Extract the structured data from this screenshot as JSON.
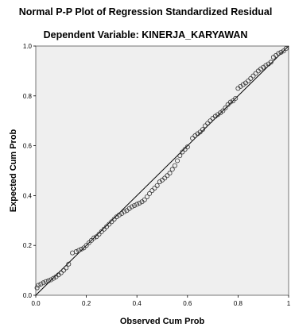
{
  "chart_data": {
    "type": "scatter",
    "title": "Normal P-P Plot of Regression Standardized Residual",
    "subtitle": "Dependent Variable: KINERJA_KARYAWAN",
    "xlabel": "Observed Cum Prob",
    "ylabel": "Expected Cum Prob",
    "xlim": [
      0,
      1
    ],
    "ylim": [
      0,
      1
    ],
    "x_ticks": [
      "0.0",
      "0.2",
      "0.4",
      "0.6",
      "0.8",
      "1"
    ],
    "y_ticks": [
      "0.0",
      "0.2",
      "0.4",
      "0.6",
      "0.8",
      "1.0"
    ],
    "grid": false,
    "reference_line": {
      "from": [
        0,
        0
      ],
      "to": [
        1,
        1
      ]
    },
    "colors": {
      "plot_background": "#efefef",
      "marker_stroke": "#333333",
      "line": "#000000"
    },
    "points": [
      [
        0.005,
        0.03
      ],
      [
        0.01,
        0.04
      ],
      [
        0.02,
        0.045
      ],
      [
        0.03,
        0.05
      ],
      [
        0.04,
        0.055
      ],
      [
        0.05,
        0.058
      ],
      [
        0.06,
        0.062
      ],
      [
        0.07,
        0.068
      ],
      [
        0.08,
        0.074
      ],
      [
        0.09,
        0.082
      ],
      [
        0.1,
        0.09
      ],
      [
        0.11,
        0.1
      ],
      [
        0.12,
        0.11
      ],
      [
        0.13,
        0.125
      ],
      [
        0.145,
        0.17
      ],
      [
        0.16,
        0.175
      ],
      [
        0.17,
        0.18
      ],
      [
        0.18,
        0.185
      ],
      [
        0.19,
        0.19
      ],
      [
        0.2,
        0.2
      ],
      [
        0.21,
        0.21
      ],
      [
        0.22,
        0.22
      ],
      [
        0.23,
        0.23
      ],
      [
        0.24,
        0.235
      ],
      [
        0.25,
        0.245
      ],
      [
        0.26,
        0.255
      ],
      [
        0.27,
        0.265
      ],
      [
        0.28,
        0.275
      ],
      [
        0.29,
        0.285
      ],
      [
        0.3,
        0.295
      ],
      [
        0.31,
        0.305
      ],
      [
        0.32,
        0.315
      ],
      [
        0.33,
        0.322
      ],
      [
        0.34,
        0.328
      ],
      [
        0.35,
        0.335
      ],
      [
        0.36,
        0.34
      ],
      [
        0.37,
        0.348
      ],
      [
        0.38,
        0.355
      ],
      [
        0.39,
        0.36
      ],
      [
        0.4,
        0.365
      ],
      [
        0.41,
        0.37
      ],
      [
        0.42,
        0.375
      ],
      [
        0.43,
        0.383
      ],
      [
        0.44,
        0.395
      ],
      [
        0.45,
        0.408
      ],
      [
        0.46,
        0.42
      ],
      [
        0.47,
        0.43
      ],
      [
        0.48,
        0.44
      ],
      [
        0.49,
        0.455
      ],
      [
        0.5,
        0.462
      ],
      [
        0.51,
        0.47
      ],
      [
        0.52,
        0.48
      ],
      [
        0.53,
        0.49
      ],
      [
        0.54,
        0.505
      ],
      [
        0.55,
        0.52
      ],
      [
        0.56,
        0.54
      ],
      [
        0.57,
        0.56
      ],
      [
        0.58,
        0.575
      ],
      [
        0.59,
        0.585
      ],
      [
        0.6,
        0.595
      ],
      [
        0.62,
        0.63
      ],
      [
        0.63,
        0.64
      ],
      [
        0.64,
        0.648
      ],
      [
        0.65,
        0.655
      ],
      [
        0.66,
        0.665
      ],
      [
        0.67,
        0.68
      ],
      [
        0.68,
        0.69
      ],
      [
        0.69,
        0.7
      ],
      [
        0.7,
        0.71
      ],
      [
        0.71,
        0.718
      ],
      [
        0.72,
        0.725
      ],
      [
        0.73,
        0.732
      ],
      [
        0.74,
        0.74
      ],
      [
        0.75,
        0.752
      ],
      [
        0.76,
        0.765
      ],
      [
        0.77,
        0.775
      ],
      [
        0.78,
        0.78
      ],
      [
        0.79,
        0.79
      ],
      [
        0.8,
        0.83
      ],
      [
        0.81,
        0.838
      ],
      [
        0.82,
        0.845
      ],
      [
        0.83,
        0.852
      ],
      [
        0.84,
        0.86
      ],
      [
        0.85,
        0.87
      ],
      [
        0.86,
        0.88
      ],
      [
        0.87,
        0.89
      ],
      [
        0.88,
        0.9
      ],
      [
        0.89,
        0.908
      ],
      [
        0.9,
        0.915
      ],
      [
        0.91,
        0.922
      ],
      [
        0.92,
        0.928
      ],
      [
        0.93,
        0.935
      ],
      [
        0.94,
        0.955
      ],
      [
        0.95,
        0.962
      ],
      [
        0.96,
        0.97
      ],
      [
        0.97,
        0.975
      ],
      [
        0.98,
        0.98
      ],
      [
        0.99,
        0.99
      ]
    ]
  }
}
